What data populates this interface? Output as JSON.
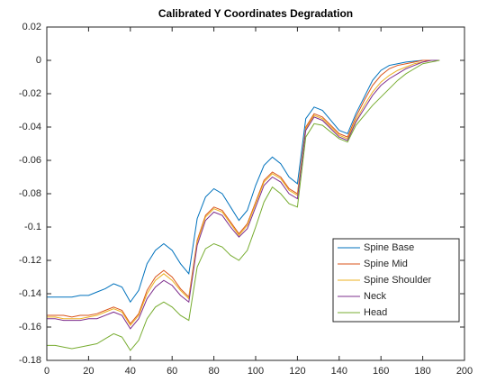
{
  "chart_data": {
    "type": "line",
    "title": "Calibrated Y Coordinates Degradation",
    "x": [
      0,
      4,
      8,
      12,
      16,
      20,
      24,
      28,
      32,
      36,
      40,
      44,
      48,
      52,
      56,
      60,
      64,
      68,
      72,
      76,
      80,
      84,
      88,
      92,
      96,
      100,
      104,
      108,
      112,
      116,
      120,
      124,
      128,
      132,
      136,
      140,
      144,
      148,
      152,
      156,
      160,
      164,
      168,
      172,
      176,
      180,
      184,
      188
    ],
    "series": [
      {
        "name": "Spine Base",
        "color": "#0072bd",
        "values": [
          -0.142,
          -0.142,
          -0.142,
          -0.142,
          -0.141,
          -0.141,
          -0.139,
          -0.137,
          -0.134,
          -0.136,
          -0.145,
          -0.138,
          -0.122,
          -0.114,
          -0.11,
          -0.114,
          -0.122,
          -0.128,
          -0.095,
          -0.082,
          -0.077,
          -0.08,
          -0.088,
          -0.096,
          -0.09,
          -0.075,
          -0.063,
          -0.058,
          -0.062,
          -0.07,
          -0.074,
          -0.035,
          -0.028,
          -0.03,
          -0.036,
          -0.042,
          -0.044,
          -0.032,
          -0.022,
          -0.012,
          -0.006,
          -0.003,
          -0.002,
          -0.001,
          -0.0005,
          0,
          0,
          0
        ]
      },
      {
        "name": "Spine Mid",
        "color": "#d95319",
        "values": [
          -0.153,
          -0.153,
          -0.153,
          -0.154,
          -0.153,
          -0.153,
          -0.152,
          -0.15,
          -0.148,
          -0.15,
          -0.158,
          -0.152,
          -0.138,
          -0.13,
          -0.126,
          -0.13,
          -0.137,
          -0.142,
          -0.108,
          -0.093,
          -0.088,
          -0.09,
          -0.097,
          -0.104,
          -0.098,
          -0.085,
          -0.072,
          -0.067,
          -0.07,
          -0.077,
          -0.08,
          -0.04,
          -0.032,
          -0.034,
          -0.039,
          -0.044,
          -0.046,
          -0.034,
          -0.024,
          -0.015,
          -0.009,
          -0.005,
          -0.003,
          -0.002,
          -0.001,
          0,
          0,
          0
        ]
      },
      {
        "name": "Spine Shoulder",
        "color": "#edb120",
        "values": [
          -0.154,
          -0.154,
          -0.155,
          -0.155,
          -0.155,
          -0.154,
          -0.153,
          -0.151,
          -0.149,
          -0.151,
          -0.159,
          -0.153,
          -0.14,
          -0.132,
          -0.128,
          -0.132,
          -0.138,
          -0.143,
          -0.109,
          -0.094,
          -0.089,
          -0.091,
          -0.098,
          -0.105,
          -0.099,
          -0.086,
          -0.073,
          -0.068,
          -0.071,
          -0.078,
          -0.081,
          -0.041,
          -0.033,
          -0.035,
          -0.04,
          -0.045,
          -0.047,
          -0.036,
          -0.027,
          -0.019,
          -0.013,
          -0.009,
          -0.006,
          -0.004,
          -0.002,
          -0.001,
          0,
          0
        ]
      },
      {
        "name": "Neck",
        "color": "#7e2f8e",
        "values": [
          -0.155,
          -0.155,
          -0.156,
          -0.156,
          -0.156,
          -0.155,
          -0.155,
          -0.153,
          -0.151,
          -0.153,
          -0.161,
          -0.155,
          -0.143,
          -0.136,
          -0.132,
          -0.135,
          -0.141,
          -0.145,
          -0.111,
          -0.096,
          -0.091,
          -0.093,
          -0.1,
          -0.106,
          -0.101,
          -0.088,
          -0.075,
          -0.07,
          -0.073,
          -0.08,
          -0.083,
          -0.042,
          -0.034,
          -0.036,
          -0.041,
          -0.046,
          -0.048,
          -0.037,
          -0.029,
          -0.021,
          -0.015,
          -0.011,
          -0.008,
          -0.005,
          -0.003,
          -0.001,
          0,
          0
        ]
      },
      {
        "name": "Head",
        "color": "#77ac30",
        "values": [
          -0.171,
          -0.171,
          -0.172,
          -0.173,
          -0.172,
          -0.171,
          -0.17,
          -0.167,
          -0.164,
          -0.166,
          -0.174,
          -0.168,
          -0.155,
          -0.148,
          -0.145,
          -0.148,
          -0.153,
          -0.156,
          -0.124,
          -0.113,
          -0.11,
          -0.112,
          -0.117,
          -0.12,
          -0.114,
          -0.1,
          -0.085,
          -0.076,
          -0.08,
          -0.086,
          -0.088,
          -0.046,
          -0.038,
          -0.039,
          -0.043,
          -0.047,
          -0.049,
          -0.039,
          -0.033,
          -0.027,
          -0.022,
          -0.017,
          -0.012,
          -0.008,
          -0.005,
          -0.002,
          -0.001,
          0
        ]
      }
    ],
    "xlim": [
      0,
      200
    ],
    "xticks": [
      0,
      20,
      40,
      60,
      80,
      100,
      120,
      140,
      160,
      180,
      200
    ],
    "ylim": [
      -0.18,
      0.02
    ],
    "yticks": [
      -0.18,
      -0.16,
      -0.14,
      -0.12,
      -0.1,
      -0.08,
      -0.06,
      -0.04,
      -0.02,
      0,
      0.02
    ],
    "legend": "southeast"
  }
}
